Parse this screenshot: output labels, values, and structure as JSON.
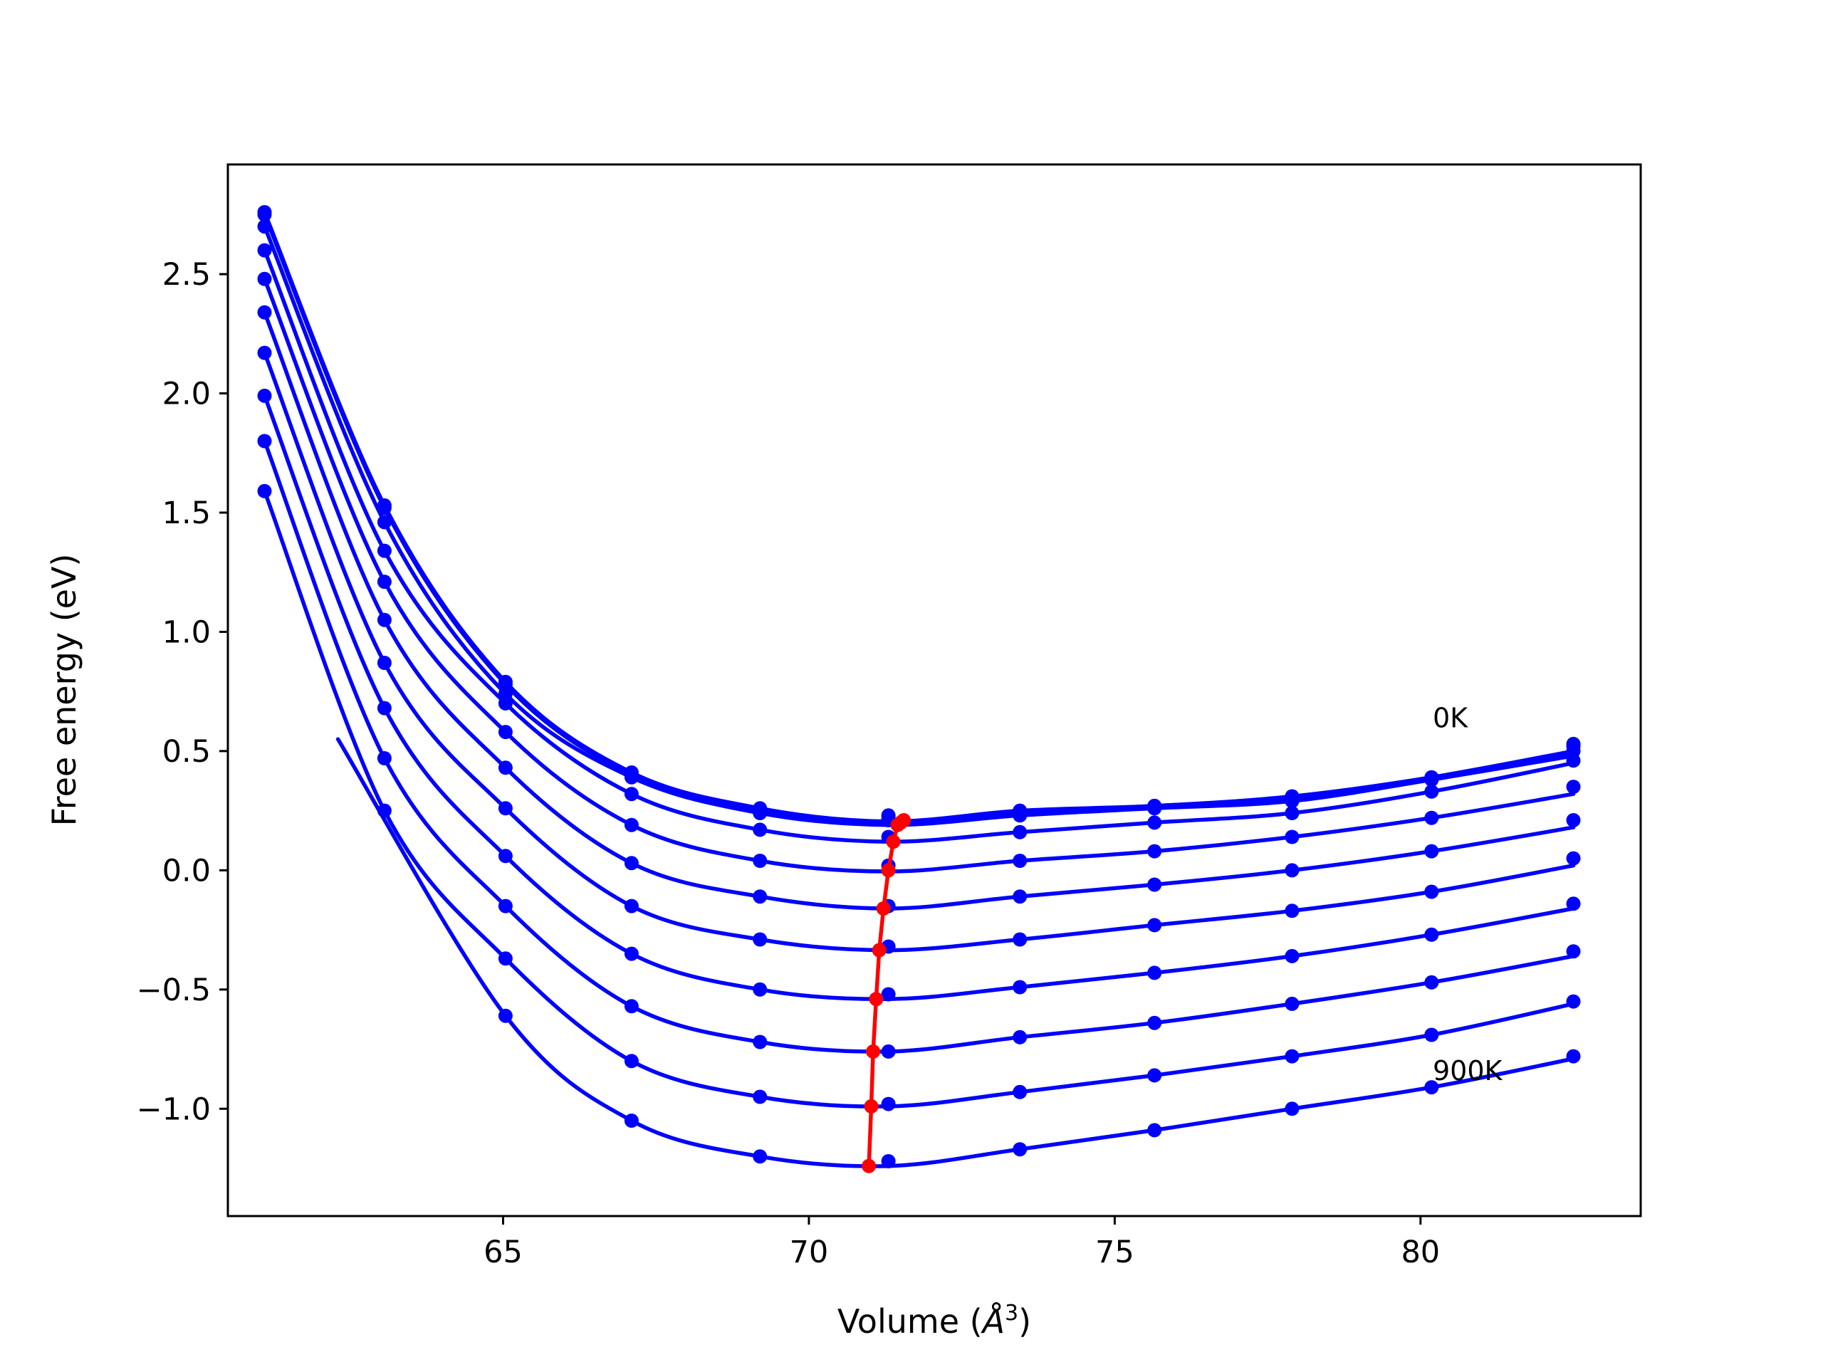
{
  "chart_data": {
    "type": "line",
    "xlabel": "Volume (Å3)",
    "xlabel_main": "Volume (",
    "xlabel_italic": "Å",
    "xlabel_sup": "3",
    "xlabel_close": ")",
    "ylabel": "Free energy (eV)",
    "xlim": [
      60.5,
      83.6
    ],
    "ylim": [
      -1.45,
      2.96
    ],
    "x_ticks": [
      65,
      70,
      75,
      80
    ],
    "x_tick_labels": [
      "65",
      "70",
      "75",
      "80"
    ],
    "y_ticks": [
      -1.0,
      -0.5,
      0.0,
      0.5,
      1.0,
      1.5,
      2.0,
      2.5
    ],
    "y_tick_labels": [
      "−1.0",
      "−0.5",
      "0.0",
      "0.5",
      "1.0",
      "1.5",
      "2.0",
      "2.5"
    ],
    "annotations": [
      {
        "text": "0K",
        "x": 80.2,
        "y": 0.6
      },
      {
        "text": "900K",
        "x": 80.2,
        "y": -0.88
      }
    ],
    "volumes": [
      61.1,
      63.06,
      65.04,
      67.1,
      69.2,
      71.3,
      73.45,
      75.65,
      77.9,
      80.18,
      82.5
    ],
    "series": [
      {
        "values": [
          2.76,
          1.53,
          0.79,
          0.41,
          0.26,
          0.23,
          0.25,
          0.27,
          0.31,
          0.39,
          0.53
        ],
        "fit_ymin": 0.205,
        "fit_ylast": 0.5
      },
      {
        "values": [
          2.75,
          1.52,
          0.78,
          0.4,
          0.25,
          0.22,
          0.24,
          0.27,
          0.3,
          0.38,
          0.52
        ],
        "fit_ymin": 0.195,
        "fit_ylast": 0.49
      },
      {
        "values": [
          2.7,
          1.46,
          0.74,
          0.39,
          0.24,
          0.21,
          0.23,
          0.26,
          0.29,
          0.38,
          0.5
        ],
        "fit_ymin": 0.19,
        "fit_ylast": 0.48
      },
      {
        "values": [
          2.6,
          1.34,
          0.7,
          0.32,
          0.17,
          0.14,
          0.16,
          0.2,
          0.24,
          0.33,
          0.46
        ],
        "fit_ymin": 0.12,
        "fit_ylast": 0.45
      },
      {
        "values": [
          2.48,
          1.21,
          0.58,
          0.19,
          0.04,
          0.02,
          0.04,
          0.08,
          0.14,
          0.22,
          0.35
        ],
        "fit_ymin": -0.005,
        "fit_ylast": 0.32
      },
      {
        "values": [
          2.34,
          1.05,
          0.43,
          0.03,
          -0.11,
          -0.15,
          -0.11,
          -0.06,
          0.0,
          0.08,
          0.21
        ],
        "fit_ymin": -0.16,
        "fit_ylast": 0.18
      },
      {
        "values": [
          2.17,
          0.87,
          0.26,
          -0.15,
          -0.29,
          -0.32,
          -0.29,
          -0.23,
          -0.17,
          -0.09,
          0.05
        ],
        "fit_ymin": -0.335,
        "fit_ylast": 0.02
      },
      {
        "values": [
          1.99,
          0.68,
          0.06,
          -0.35,
          -0.5,
          -0.52,
          -0.49,
          -0.43,
          -0.36,
          -0.27,
          -0.14
        ],
        "fit_ymin": -0.54,
        "fit_ylast": -0.16
      },
      {
        "values": [
          1.8,
          0.47,
          -0.15,
          -0.57,
          -0.72,
          -0.76,
          -0.7,
          -0.64,
          -0.56,
          -0.47,
          -0.34
        ],
        "fit_ymin": -0.76,
        "fit_ylast": -0.36
      },
      {
        "values": [
          1.59,
          0.25,
          -0.37,
          -0.8,
          -0.95,
          -0.98,
          -0.93,
          -0.86,
          -0.78,
          -0.69,
          -0.55
        ],
        "fit_ymin": -0.99,
        "fit_ylast": -0.56
      },
      {
        "values": [
          null,
          null,
          -0.61,
          -1.05,
          -1.2,
          -1.22,
          -1.17,
          -1.09,
          -1.0,
          -0.91,
          -0.78
        ],
        "fit_ymin": -1.24,
        "fit_ylast": -0.79
      }
    ],
    "minima": {
      "x": [
        71.55,
        71.5,
        71.45,
        71.38,
        71.3,
        71.22,
        71.15,
        71.1,
        71.05,
        71.02,
        70.98
      ],
      "y": [
        0.21,
        0.2,
        0.19,
        0.12,
        0.0,
        -0.16,
        -0.335,
        -0.54,
        -0.76,
        -0.99,
        -1.24
      ]
    },
    "colors": {
      "series": "#0000ff",
      "minima": "#ff0000",
      "axes": "#000000"
    }
  }
}
